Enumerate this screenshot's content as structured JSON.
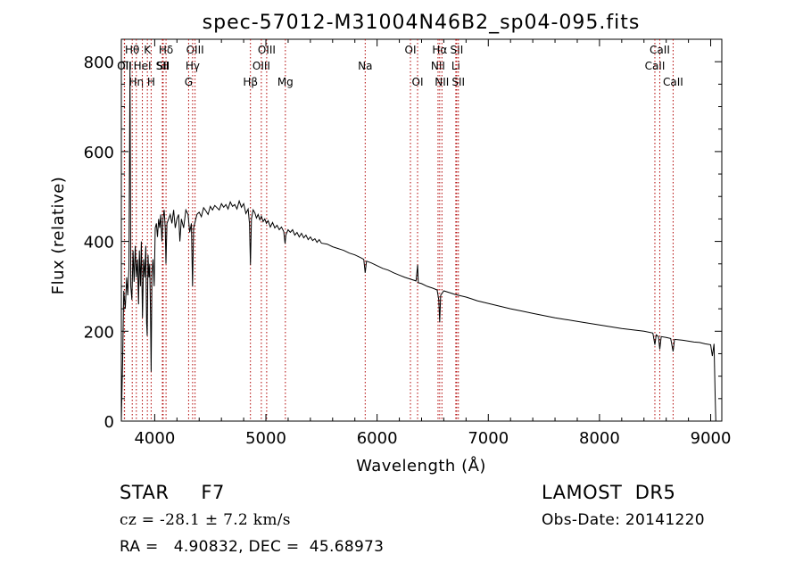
{
  "chart_data": {
    "type": "line",
    "title": "spec-57012-M31004N46B2_sp04-095.fits",
    "xlabel": "Wavelength (Å)",
    "ylabel": "Flux (relative)",
    "xlim": [
      3700,
      9100
    ],
    "ylim": [
      0,
      850
    ],
    "xticks": [
      4000,
      5000,
      6000,
      7000,
      8000,
      9000
    ],
    "yticks": [
      0,
      200,
      400,
      600,
      800
    ],
    "grid": false,
    "series": [
      {
        "points": [
          [
            3700,
            0
          ],
          [
            3712,
            140
          ],
          [
            3722,
            290
          ],
          [
            3735,
            250
          ],
          [
            3748,
            320
          ],
          [
            3758,
            280
          ],
          [
            3768,
            340
          ],
          [
            3778,
            800
          ],
          [
            3785,
            300
          ],
          [
            3795,
            270
          ],
          [
            3805,
            380
          ],
          [
            3815,
            310
          ],
          [
            3825,
            390
          ],
          [
            3835,
            320
          ],
          [
            3845,
            360
          ],
          [
            3855,
            260
          ],
          [
            3862,
            380
          ],
          [
            3872,
            300
          ],
          [
            3880,
            400
          ],
          [
            3890,
            230
          ],
          [
            3900,
            360
          ],
          [
            3910,
            320
          ],
          [
            3920,
            390
          ],
          [
            3927,
            220
          ],
          [
            3933,
            190
          ],
          [
            3940,
            370
          ],
          [
            3948,
            320
          ],
          [
            3955,
            350
          ],
          [
            3962,
            240
          ],
          [
            3968,
            110
          ],
          [
            3975,
            330
          ],
          [
            3985,
            360
          ],
          [
            3995,
            300
          ],
          [
            4005,
            430
          ],
          [
            4015,
            440
          ],
          [
            4025,
            410
          ],
          [
            4035,
            450
          ],
          [
            4045,
            430
          ],
          [
            4055,
            460
          ],
          [
            4065,
            400
          ],
          [
            4075,
            450
          ],
          [
            4085,
            470
          ],
          [
            4095,
            430
          ],
          [
            4101,
            350
          ],
          [
            4110,
            440
          ],
          [
            4125,
            450
          ],
          [
            4140,
            460
          ],
          [
            4155,
            440
          ],
          [
            4170,
            470
          ],
          [
            4185,
            430
          ],
          [
            4200,
            450
          ],
          [
            4215,
            460
          ],
          [
            4226,
            400
          ],
          [
            4240,
            450
          ],
          [
            4260,
            430
          ],
          [
            4280,
            470
          ],
          [
            4300,
            460
          ],
          [
            4315,
            420
          ],
          [
            4330,
            440
          ],
          [
            4340,
            300
          ],
          [
            4350,
            430
          ],
          [
            4365,
            445
          ],
          [
            4380,
            460
          ],
          [
            4400,
            465
          ],
          [
            4420,
            455
          ],
          [
            4440,
            475
          ],
          [
            4460,
            468
          ],
          [
            4480,
            460
          ],
          [
            4500,
            478
          ],
          [
            4520,
            470
          ],
          [
            4540,
            480
          ],
          [
            4560,
            475
          ],
          [
            4580,
            470
          ],
          [
            4600,
            484
          ],
          [
            4620,
            476
          ],
          [
            4640,
            482
          ],
          [
            4660,
            472
          ],
          [
            4680,
            488
          ],
          [
            4700,
            478
          ],
          [
            4720,
            482
          ],
          [
            4740,
            472
          ],
          [
            4760,
            490
          ],
          [
            4780,
            476
          ],
          [
            4800,
            484
          ],
          [
            4820,
            462
          ],
          [
            4840,
            472
          ],
          [
            4852,
            440
          ],
          [
            4861,
            348
          ],
          [
            4870,
            450
          ],
          [
            4885,
            470
          ],
          [
            4900,
            464
          ],
          [
            4915,
            452
          ],
          [
            4930,
            460
          ],
          [
            4945,
            448
          ],
          [
            4960,
            456
          ],
          [
            4975,
            444
          ],
          [
            4990,
            450
          ],
          [
            5005,
            440
          ],
          [
            5020,
            446
          ],
          [
            5040,
            432
          ],
          [
            5060,
            442
          ],
          [
            5080,
            430
          ],
          [
            5100,
            436
          ],
          [
            5120,
            426
          ],
          [
            5140,
            432
          ],
          [
            5160,
            422
          ],
          [
            5172,
            395
          ],
          [
            5180,
            415
          ],
          [
            5200,
            426
          ],
          [
            5220,
            420
          ],
          [
            5240,
            426
          ],
          [
            5260,
            414
          ],
          [
            5280,
            420
          ],
          [
            5300,
            410
          ],
          [
            5320,
            418
          ],
          [
            5340,
            408
          ],
          [
            5360,
            414
          ],
          [
            5380,
            404
          ],
          [
            5400,
            410
          ],
          [
            5420,
            402
          ],
          [
            5440,
            406
          ],
          [
            5460,
            398
          ],
          [
            5480,
            404
          ],
          [
            5500,
            396
          ],
          [
            5550,
            394
          ],
          [
            5600,
            388
          ],
          [
            5650,
            384
          ],
          [
            5700,
            380
          ],
          [
            5750,
            374
          ],
          [
            5800,
            370
          ],
          [
            5850,
            364
          ],
          [
            5880,
            360
          ],
          [
            5893,
            330
          ],
          [
            5905,
            356
          ],
          [
            5950,
            352
          ],
          [
            6000,
            346
          ],
          [
            6050,
            340
          ],
          [
            6100,
            336
          ],
          [
            6150,
            330
          ],
          [
            6200,
            325
          ],
          [
            6250,
            320
          ],
          [
            6300,
            316
          ],
          [
            6350,
            312
          ],
          [
            6365,
            348
          ],
          [
            6370,
            308
          ],
          [
            6400,
            306
          ],
          [
            6450,
            300
          ],
          [
            6500,
            296
          ],
          [
            6540,
            292
          ],
          [
            6555,
            270
          ],
          [
            6563,
            220
          ],
          [
            6572,
            280
          ],
          [
            6600,
            290
          ],
          [
            6650,
            286
          ],
          [
            6700,
            282
          ],
          [
            6750,
            279
          ],
          [
            6800,
            276
          ],
          [
            6850,
            272
          ],
          [
            6900,
            268
          ],
          [
            6950,
            265
          ],
          [
            7000,
            262
          ],
          [
            7100,
            256
          ],
          [
            7200,
            250
          ],
          [
            7300,
            245
          ],
          [
            7400,
            240
          ],
          [
            7500,
            235
          ],
          [
            7600,
            230
          ],
          [
            7700,
            226
          ],
          [
            7800,
            222
          ],
          [
            7900,
            218
          ],
          [
            8000,
            214
          ],
          [
            8100,
            210
          ],
          [
            8200,
            206
          ],
          [
            8300,
            203
          ],
          [
            8400,
            200
          ],
          [
            8480,
            196
          ],
          [
            8498,
            170
          ],
          [
            8510,
            192
          ],
          [
            8530,
            188
          ],
          [
            8542,
            160
          ],
          [
            8555,
            188
          ],
          [
            8600,
            186
          ],
          [
            8640,
            184
          ],
          [
            8662,
            155
          ],
          [
            8675,
            182
          ],
          [
            8750,
            180
          ],
          [
            8800,
            178
          ],
          [
            8850,
            176
          ],
          [
            8900,
            175
          ],
          [
            8950,
            172
          ],
          [
            9000,
            170
          ],
          [
            9015,
            145
          ],
          [
            9030,
            172
          ],
          [
            9040,
            60
          ],
          [
            9046,
            0
          ]
        ]
      }
    ],
    "lines": [
      {
        "label": "OII",
        "wl": 3727,
        "row": 2
      },
      {
        "label": "OII",
        "wl": 3729,
        "row": 2
      },
      {
        "label": "Hθ",
        "wl": 3798,
        "row": 1
      },
      {
        "label": "Hη",
        "wl": 3835,
        "row": 3
      },
      {
        "label": "HeI",
        "wl": 3889,
        "row": 2
      },
      {
        "label": "K",
        "wl": 3934,
        "row": 1
      },
      {
        "label": "H",
        "wl": 3968,
        "row": 3
      },
      {
        "label": "SII",
        "wl": 4069,
        "row": 2
      },
      {
        "label": "SII",
        "wl": 4076,
        "row": 2
      },
      {
        "label": "Hδ",
        "wl": 4102,
        "row": 1
      },
      {
        "label": "G",
        "wl": 4305,
        "row": 3
      },
      {
        "label": "OIII",
        "wl": 4363,
        "row": 1
      },
      {
        "label": "Hγ",
        "wl": 4341,
        "row": 2
      },
      {
        "label": "Hβ",
        "wl": 4861,
        "row": 3
      },
      {
        "label": "OIII",
        "wl": 4959,
        "row": 2
      },
      {
        "label": "OIII",
        "wl": 5007,
        "row": 1
      },
      {
        "label": "Mg",
        "wl": 5175,
        "row": 3
      },
      {
        "label": "Na",
        "wl": 5893,
        "row": 2
      },
      {
        "label": "OI",
        "wl": 6300,
        "row": 1
      },
      {
        "label": "OI",
        "wl": 6364,
        "row": 3
      },
      {
        "label": "NII",
        "wl": 6548,
        "row": 2
      },
      {
        "label": "Hα",
        "wl": 6563,
        "row": 1
      },
      {
        "label": "NII",
        "wl": 6583,
        "row": 3
      },
      {
        "label": "Li",
        "wl": 6708,
        "row": 2
      },
      {
        "label": "SII",
        "wl": 6716,
        "row": 1
      },
      {
        "label": "SII",
        "wl": 6731,
        "row": 3
      },
      {
        "label": "CaII",
        "wl": 8498,
        "row": 2
      },
      {
        "label": "CaII",
        "wl": 8542,
        "row": 1
      },
      {
        "label": "CaII",
        "wl": 8662,
        "row": 3
      }
    ],
    "line_color": "#b00000"
  },
  "footer": {
    "left1": "STAR     F7",
    "left2": "cz = -28.1 ± 7.2 km/s",
    "left3": "RA =   4.90832, DEC =  45.68973",
    "right1": "LAMOST  DR5",
    "right2": "Obs-Date: 20141220"
  }
}
